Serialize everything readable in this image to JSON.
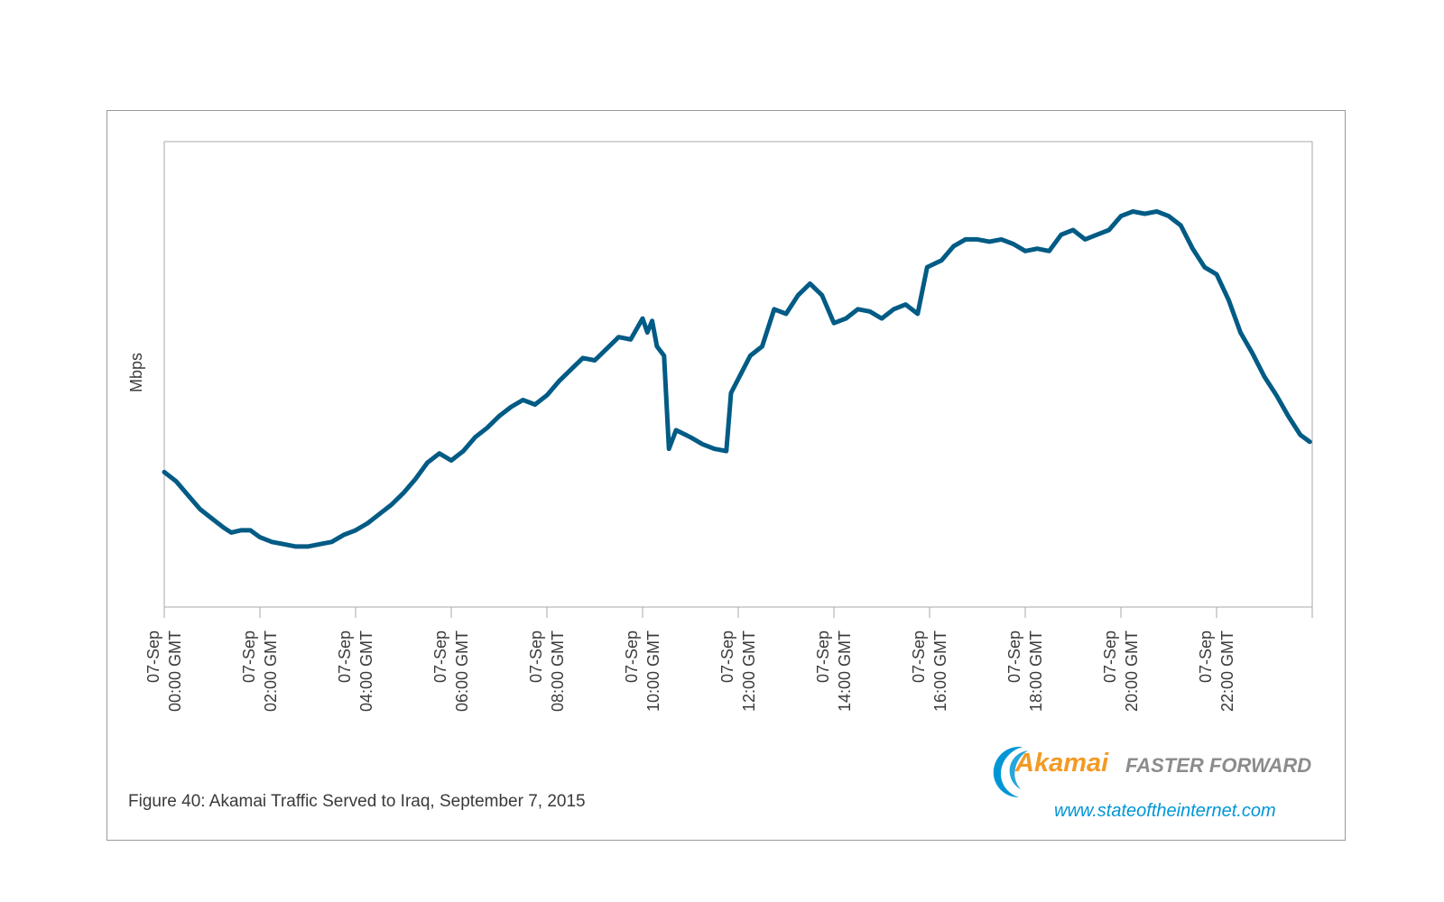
{
  "chart_data": {
    "type": "line",
    "title": "Akamai Traffic Served to Iraq, September 7, 2015",
    "xlabel": "",
    "ylabel": "Mbps",
    "y_tick_labels": [],
    "ylim": [
      0,
      100
    ],
    "x_hours_range": [
      0,
      24
    ],
    "x_tick_hours": [
      0,
      2,
      4,
      6,
      8,
      10,
      12,
      14,
      16,
      18,
      20,
      22
    ],
    "x_tick_labels": [
      {
        "date": "07-Sep",
        "time": "00:00 GMT"
      },
      {
        "date": "07-Sep",
        "time": "02:00 GMT"
      },
      {
        "date": "07-Sep",
        "time": "04:00 GMT"
      },
      {
        "date": "07-Sep",
        "time": "06:00 GMT"
      },
      {
        "date": "07-Sep",
        "time": "08:00 GMT"
      },
      {
        "date": "07-Sep",
        "time": "10:00 GMT"
      },
      {
        "date": "07-Sep",
        "time": "12:00 GMT"
      },
      {
        "date": "07-Sep",
        "time": "14:00 GMT"
      },
      {
        "date": "07-Sep",
        "time": "16:00 GMT"
      },
      {
        "date": "07-Sep",
        "time": "18:00 GMT"
      },
      {
        "date": "07-Sep",
        "time": "20:00 GMT"
      },
      {
        "date": "07-Sep",
        "time": "22:00 GMT"
      }
    ],
    "series": [
      {
        "name": "Traffic",
        "color": "#005b85",
        "points": [
          [
            0.0,
            29
          ],
          [
            0.25,
            27
          ],
          [
            0.5,
            24
          ],
          [
            0.75,
            21
          ],
          [
            1.0,
            19
          ],
          [
            1.25,
            17
          ],
          [
            1.4,
            16
          ],
          [
            1.6,
            16.5
          ],
          [
            1.8,
            16.5
          ],
          [
            2.0,
            15
          ],
          [
            2.25,
            14
          ],
          [
            2.5,
            13.5
          ],
          [
            2.75,
            13
          ],
          [
            3.0,
            13
          ],
          [
            3.25,
            13.5
          ],
          [
            3.5,
            14
          ],
          [
            3.75,
            15.5
          ],
          [
            4.0,
            16.5
          ],
          [
            4.25,
            18
          ],
          [
            4.5,
            20
          ],
          [
            4.75,
            22
          ],
          [
            5.0,
            24.5
          ],
          [
            5.25,
            27.5
          ],
          [
            5.5,
            31
          ],
          [
            5.75,
            33
          ],
          [
            6.0,
            31.5
          ],
          [
            6.25,
            33.5
          ],
          [
            6.5,
            36.5
          ],
          [
            6.75,
            38.5
          ],
          [
            7.0,
            41
          ],
          [
            7.25,
            43
          ],
          [
            7.5,
            44.5
          ],
          [
            7.75,
            43.5
          ],
          [
            8.0,
            45.5
          ],
          [
            8.25,
            48.5
          ],
          [
            8.5,
            51
          ],
          [
            8.75,
            53.5
          ],
          [
            9.0,
            53
          ],
          [
            9.25,
            55.5
          ],
          [
            9.5,
            58
          ],
          [
            9.75,
            57.5
          ],
          [
            10.0,
            62
          ],
          [
            10.1,
            59
          ],
          [
            10.2,
            61.5
          ],
          [
            10.3,
            56
          ],
          [
            10.45,
            54
          ],
          [
            10.55,
            34
          ],
          [
            10.7,
            38
          ],
          [
            11.0,
            36.5
          ],
          [
            11.25,
            35
          ],
          [
            11.5,
            34
          ],
          [
            11.75,
            33.5
          ],
          [
            11.85,
            46
          ],
          [
            12.0,
            49
          ],
          [
            12.25,
            54
          ],
          [
            12.5,
            56
          ],
          [
            12.75,
            64
          ],
          [
            13.0,
            63
          ],
          [
            13.25,
            67
          ],
          [
            13.5,
            69.5
          ],
          [
            13.75,
            67
          ],
          [
            14.0,
            61
          ],
          [
            14.25,
            62
          ],
          [
            14.5,
            64
          ],
          [
            14.75,
            63.5
          ],
          [
            15.0,
            62
          ],
          [
            15.25,
            64
          ],
          [
            15.5,
            65
          ],
          [
            15.75,
            63
          ],
          [
            15.95,
            73
          ],
          [
            16.25,
            74.5
          ],
          [
            16.5,
            77.5
          ],
          [
            16.75,
            79
          ],
          [
            17.0,
            79
          ],
          [
            17.25,
            78.5
          ],
          [
            17.5,
            79
          ],
          [
            17.75,
            78
          ],
          [
            18.0,
            76.5
          ],
          [
            18.25,
            77
          ],
          [
            18.5,
            76.5
          ],
          [
            18.75,
            80
          ],
          [
            19.0,
            81
          ],
          [
            19.25,
            79
          ],
          [
            19.5,
            80
          ],
          [
            19.75,
            81
          ],
          [
            20.0,
            84
          ],
          [
            20.25,
            85
          ],
          [
            20.5,
            84.5
          ],
          [
            20.75,
            85
          ],
          [
            21.0,
            84
          ],
          [
            21.25,
            82
          ],
          [
            21.5,
            77
          ],
          [
            21.75,
            73
          ],
          [
            22.0,
            71.5
          ],
          [
            22.25,
            66
          ],
          [
            22.5,
            59
          ],
          [
            22.75,
            54.5
          ],
          [
            23.0,
            49.5
          ],
          [
            23.25,
            45.5
          ],
          [
            23.5,
            41
          ],
          [
            23.75,
            37
          ],
          [
            23.95,
            35.5
          ]
        ]
      }
    ]
  },
  "caption": "Figure 40: Akamai Traffic Served to Iraq, September 7, 2015",
  "logo": {
    "brand": "Akamai",
    "tagline": "FASTER FORWARD",
    "url": "www.stateoftheinternet.com"
  },
  "colors": {
    "line": "#005b85",
    "axis": "#9a9a9a",
    "caption_text": "#3a3a3a",
    "brand_orange": "#f39a25",
    "brand_blue": "#0096d6",
    "tagline_gray": "#8c8c8c"
  }
}
